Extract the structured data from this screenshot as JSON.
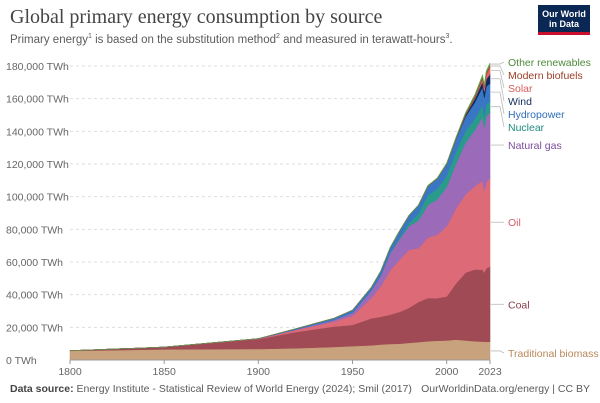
{
  "header": {
    "title": "Global primary energy consumption by source",
    "subtitle_part1": "Primary energy",
    "subtitle_sup1": "1",
    "subtitle_part2": " is based on the substitution method",
    "subtitle_sup2": "2",
    "subtitle_part3": " and measured in terawatt-hours",
    "subtitle_sup3": "3",
    "subtitle_part4": "."
  },
  "logo": {
    "line1": "Our World",
    "line2": "in Data"
  },
  "footer": {
    "source_label": "Data source:",
    "source_text": " Energy Institute - Statistical Review of World Energy (2024); Smil (2017)",
    "right_text": "OurWorldinData.org/energy | CC BY"
  },
  "chart_data": {
    "type": "area",
    "stacked": true,
    "title": "Global primary energy consumption by source",
    "ylabel": "TWh",
    "ylim": [
      0,
      180000
    ],
    "xlim": [
      1800,
      2023
    ],
    "y_ticks": [
      0,
      20000,
      40000,
      60000,
      80000,
      100000,
      120000,
      140000,
      160000,
      180000
    ],
    "y_tick_labels": [
      "0 TWh",
      "20,000 TWh",
      "40,000 TWh",
      "60,000 TWh",
      "80,000 TWh",
      "100,000 TWh",
      "120,000 TWh",
      "140,000 TWh",
      "160,000 TWh",
      "180,000 TWh"
    ],
    "x_ticks": [
      1800,
      1850,
      1900,
      1950,
      2000,
      2023
    ],
    "x_tick_labels": [
      "1800",
      "1850",
      "1900",
      "1950",
      "2000",
      "2023"
    ],
    "x": [
      1800,
      1850,
      1900,
      1920,
      1940,
      1950,
      1960,
      1965,
      1970,
      1975,
      1980,
      1985,
      1990,
      1995,
      2000,
      2005,
      2010,
      2015,
      2019,
      2020,
      2021,
      2023
    ],
    "series": [
      {
        "name": "Traditional biomass",
        "color": "#c8a27c",
        "values": [
          5600,
          6500,
          6800,
          7200,
          8000,
          8500,
          9000,
          9500,
          9800,
          10000,
          10500,
          11000,
          11500,
          11800,
          12000,
          12500,
          12000,
          11500,
          11300,
          11200,
          11200,
          11100
        ]
      },
      {
        "name": "Coal",
        "color": "#a04a55",
        "values": [
          100,
          1400,
          6000,
          10000,
          12500,
          13000,
          16500,
          17000,
          18000,
          19500,
          21500,
          24500,
          26500,
          26000,
          27000,
          34500,
          41500,
          44000,
          44000,
          42500,
          45000,
          46000
        ]
      },
      {
        "name": "Oil",
        "color": "#dc6a77",
        "values": [
          0,
          0,
          200,
          1200,
          3000,
          5500,
          12500,
          18500,
          27000,
          32000,
          35500,
          33000,
          37000,
          39000,
          43000,
          46000,
          48000,
          51000,
          54500,
          50000,
          52500,
          54500
        ]
      },
      {
        "name": "Natural gas",
        "color": "#9b6ab8",
        "values": [
          0,
          0,
          100,
          300,
          1000,
          2000,
          4500,
          6500,
          10500,
          12500,
          14500,
          17000,
          20000,
          21500,
          24000,
          27500,
          31500,
          34500,
          39000,
          38500,
          40500,
          40000
        ]
      },
      {
        "name": "Nuclear",
        "color": "#2a9a8a",
        "values": [
          0,
          0,
          0,
          0,
          0,
          0,
          0,
          100,
          200,
          1100,
          2000,
          4200,
          6000,
          6600,
          7000,
          7400,
          7200,
          6900,
          7300,
          7000,
          7200,
          7000
        ]
      },
      {
        "name": "Hydropower",
        "color": "#3977c5",
        "values": [
          0,
          0,
          0,
          500,
          1000,
          1500,
          2000,
          2800,
          3300,
          4000,
          4500,
          5000,
          5500,
          6200,
          7000,
          7600,
          8800,
          10000,
          11000,
          11400,
          11000,
          10800
        ]
      },
      {
        "name": "Wind",
        "color": "#0f2c5c",
        "values": [
          0,
          0,
          0,
          0,
          0,
          0,
          0,
          0,
          0,
          0,
          0,
          0,
          10,
          20,
          80,
          250,
          900,
          2200,
          3400,
          3900,
          4500,
          5600
        ]
      },
      {
        "name": "Solar",
        "color": "#e06464",
        "values": [
          0,
          0,
          0,
          0,
          0,
          0,
          0,
          0,
          0,
          0,
          0,
          0,
          0,
          0,
          5,
          10,
          80,
          700,
          1800,
          2300,
          2800,
          4300
        ]
      },
      {
        "name": "Modern biofuels",
        "color": "#a2432e",
        "values": [
          0,
          0,
          0,
          0,
          0,
          0,
          0,
          0,
          0,
          0,
          50,
          100,
          150,
          150,
          200,
          400,
          900,
          1000,
          1150,
          1050,
          1150,
          1300
        ]
      },
      {
        "name": "Other renewables",
        "color": "#5ea34a",
        "values": [
          0,
          0,
          0,
          0,
          0,
          0,
          0,
          0,
          50,
          80,
          100,
          150,
          200,
          250,
          300,
          400,
          600,
          800,
          1000,
          1050,
          1100,
          1200
        ]
      }
    ],
    "legend_order": [
      "Other renewables",
      "Modern biofuels",
      "Solar",
      "Wind",
      "Hydropower",
      "Nuclear",
      "Natural gas",
      "Oil",
      "Coal",
      "Traditional biomass"
    ],
    "legend_colors": {
      "Other renewables": "#4f8a3a",
      "Modern biofuels": "#9a3d24",
      "Solar": "#d45c5c",
      "Wind": "#0f2c5c",
      "Hydropower": "#2f6db8",
      "Nuclear": "#1f8b7c",
      "Natural gas": "#7c4c9d",
      "Oil": "#d45c6b",
      "Coal": "#8b3c48",
      "Traditional biomass": "#b8875a"
    }
  }
}
